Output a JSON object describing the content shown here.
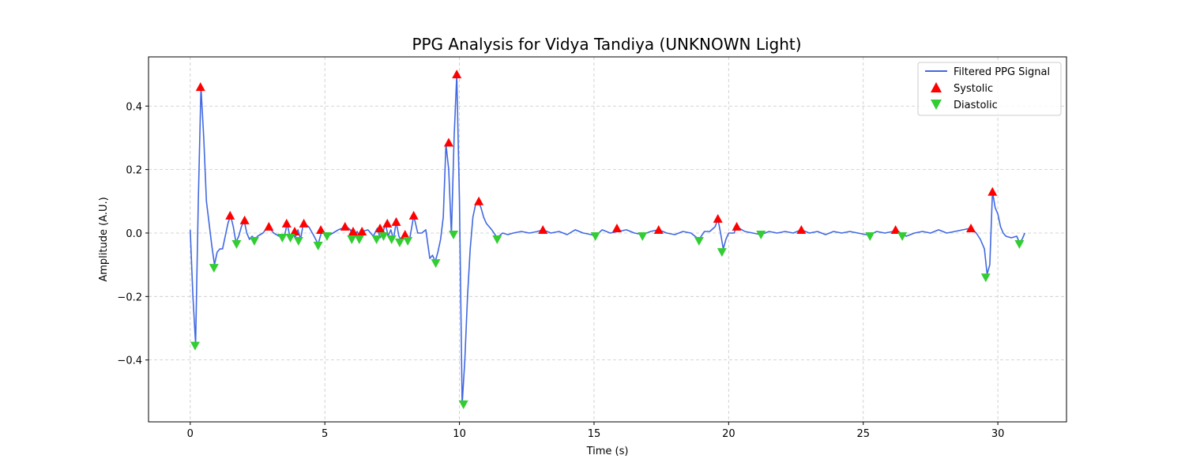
{
  "chart_data": {
    "type": "line",
    "title": "PPG Analysis for Vidya Tandiya (UNKNOWN Light)",
    "xlabel": "Time (s)",
    "ylabel": "Amplitude (A.U.)",
    "xlim": [
      -1.55,
      32.55
    ],
    "ylim": [
      -0.595,
      0.555
    ],
    "xticks": [
      0,
      5,
      10,
      15,
      20,
      25,
      30
    ],
    "yticks": [
      -0.4,
      -0.2,
      0.0,
      0.2,
      0.4
    ],
    "ytick_labels": [
      "−0.4",
      "−0.2",
      "0.0",
      "0.2",
      "0.4"
    ],
    "grid": true,
    "legend_position": "top-right",
    "colors": {
      "signal": "#4169e1",
      "systolic": "#ff0000",
      "diastolic": "#32cd32"
    },
    "series": [
      {
        "name": "Filtered PPG Signal",
        "kind": "line",
        "x": [
          0,
          0.1,
          0.2,
          0.3,
          0.4,
          0.5,
          0.6,
          0.7,
          0.8,
          0.9,
          1.0,
          1.1,
          1.2,
          1.3,
          1.4,
          1.5,
          1.6,
          1.7,
          1.8,
          1.9,
          2.0,
          2.1,
          2.2,
          2.3,
          2.4,
          2.5,
          2.7,
          2.9,
          3.1,
          3.3,
          3.5,
          3.6,
          3.7,
          3.8,
          3.9,
          4.0,
          4.1,
          4.2,
          4.4,
          4.6,
          4.75,
          4.9,
          5.1,
          5.3,
          5.5,
          5.8,
          5.95,
          6.05,
          6.2,
          6.3,
          6.4,
          6.6,
          6.8,
          6.95,
          7.05,
          7.15,
          7.25,
          7.35,
          7.45,
          7.55,
          7.65,
          7.75,
          7.85,
          7.95,
          8.05,
          8.15,
          8.3,
          8.45,
          8.6,
          8.75,
          8.9,
          9.0,
          9.1,
          9.2,
          9.3,
          9.4,
          9.5,
          9.6,
          9.7,
          9.8,
          9.9,
          10.0,
          10.1,
          10.2,
          10.3,
          10.4,
          10.5,
          10.6,
          10.7,
          10.8,
          10.9,
          11.0,
          11.2,
          11.4,
          11.6,
          11.8,
          12.0,
          12.3,
          12.6,
          12.9,
          13.1,
          13.4,
          13.7,
          14.0,
          14.3,
          14.6,
          14.9,
          15.05,
          15.3,
          15.6,
          15.9,
          16.2,
          16.5,
          16.8,
          17.1,
          17.4,
          17.7,
          18.0,
          18.3,
          18.6,
          18.9,
          19.1,
          19.3,
          19.5,
          19.6,
          19.7,
          19.8,
          19.9,
          20.0,
          20.2,
          20.3,
          20.6,
          20.9,
          21.2,
          21.5,
          21.8,
          22.1,
          22.4,
          22.7,
          23.0,
          23.3,
          23.6,
          23.9,
          24.2,
          24.5,
          24.8,
          25.1,
          25.25,
          25.5,
          25.8,
          26.1,
          26.2,
          26.4,
          26.6,
          26.9,
          27.2,
          27.5,
          27.8,
          28.1,
          28.4,
          28.7,
          29.0,
          29.2,
          29.35,
          29.5,
          29.6,
          29.7,
          29.8,
          29.9,
          30.0,
          30.1,
          30.2,
          30.3,
          30.5,
          30.7,
          30.8,
          30.9,
          31.0
        ],
        "y": [
          0.01,
          -0.2,
          -0.35,
          0.1,
          0.46,
          0.3,
          0.1,
          0.03,
          -0.04,
          -0.1,
          -0.06,
          -0.05,
          -0.05,
          -0.01,
          0.03,
          0.055,
          0.02,
          -0.03,
          -0.01,
          0.02,
          0.04,
          0.0,
          -0.02,
          -0.01,
          -0.02,
          -0.01,
          0.0,
          0.02,
          0.0,
          -0.01,
          -0.01,
          0.03,
          -0.01,
          0.0,
          -0.015,
          0.01,
          -0.02,
          0.03,
          0.02,
          -0.01,
          -0.035,
          0.01,
          -0.01,
          0.0,
          0.01,
          0.02,
          0.01,
          -0.02,
          0.005,
          -0.015,
          0.005,
          0.01,
          -0.01,
          0.015,
          -0.015,
          0.0,
          0.03,
          -0.01,
          0.01,
          -0.02,
          0.035,
          -0.01,
          -0.025,
          0.0,
          -0.01,
          -0.02,
          0.055,
          0.0,
          0.0,
          0.01,
          -0.08,
          -0.07,
          -0.09,
          -0.06,
          -0.02,
          0.05,
          0.28,
          0.2,
          -0.005,
          0.3,
          0.5,
          0.1,
          -0.54,
          -0.4,
          -0.2,
          -0.05,
          0.05,
          0.09,
          0.1,
          0.08,
          0.05,
          0.03,
          0.01,
          -0.015,
          0.0,
          -0.005,
          0.0,
          0.005,
          0.0,
          0.005,
          0.01,
          0.0,
          0.005,
          -0.005,
          0.01,
          0.0,
          -0.005,
          -0.01,
          0.01,
          0.0,
          0.005,
          0.01,
          0.0,
          -0.005,
          0.005,
          0.01,
          0.0,
          -0.005,
          0.005,
          0.0,
          -0.02,
          0.005,
          0.005,
          0.02,
          0.045,
          0.0,
          -0.05,
          -0.02,
          0.0,
          0.0,
          0.02,
          0.005,
          0.0,
          -0.005,
          0.005,
          0.0,
          0.005,
          0.0,
          0.01,
          0.0,
          0.005,
          -0.005,
          0.005,
          0.0,
          0.005,
          0.0,
          -0.005,
          -0.005,
          0.005,
          0.0,
          0.005,
          0.01,
          0.0,
          -0.01,
          0.0,
          0.005,
          0.0,
          0.01,
          0.0,
          0.005,
          0.01,
          0.015,
          0.0,
          -0.02,
          -0.05,
          -0.13,
          -0.1,
          0.13,
          0.08,
          0.06,
          0.02,
          0.0,
          -0.01,
          -0.015,
          -0.01,
          -0.03,
          -0.02,
          0.0
        ]
      },
      {
        "name": "Systolic",
        "kind": "marker-up",
        "x": [
          0.38,
          1.48,
          2.02,
          2.92,
          3.58,
          3.88,
          4.22,
          4.85,
          5.75,
          6.05,
          6.38,
          7.05,
          7.32,
          7.65,
          7.98,
          8.3,
          9.6,
          9.9,
          10.72,
          13.1,
          15.85,
          17.4,
          19.6,
          20.3,
          22.7,
          26.2,
          29.0,
          29.8
        ],
        "y": [
          0.46,
          0.055,
          0.04,
          0.02,
          0.03,
          0.005,
          0.03,
          0.01,
          0.02,
          0.005,
          0.005,
          0.015,
          0.03,
          0.035,
          -0.005,
          0.055,
          0.285,
          0.5,
          0.1,
          0.01,
          0.015,
          0.01,
          0.045,
          0.02,
          0.01,
          0.01,
          0.015,
          0.13
        ]
      },
      {
        "name": "Diastolic",
        "kind": "marker-down",
        "x": [
          0.18,
          0.88,
          1.72,
          2.38,
          3.42,
          3.72,
          4.02,
          4.75,
          5.08,
          6.0,
          6.28,
          6.92,
          7.18,
          7.48,
          7.78,
          8.08,
          9.12,
          9.78,
          10.15,
          11.4,
          15.05,
          16.8,
          18.9,
          19.75,
          21.2,
          25.25,
          26.45,
          29.55,
          30.8
        ],
        "y": [
          -0.355,
          -0.11,
          -0.035,
          -0.025,
          -0.015,
          -0.015,
          -0.025,
          -0.04,
          -0.01,
          -0.02,
          -0.02,
          -0.02,
          -0.01,
          -0.02,
          -0.03,
          -0.025,
          -0.095,
          -0.005,
          -0.54,
          -0.02,
          -0.01,
          -0.01,
          -0.025,
          -0.06,
          -0.005,
          -0.01,
          -0.01,
          -0.14,
          -0.035
        ]
      }
    ]
  }
}
